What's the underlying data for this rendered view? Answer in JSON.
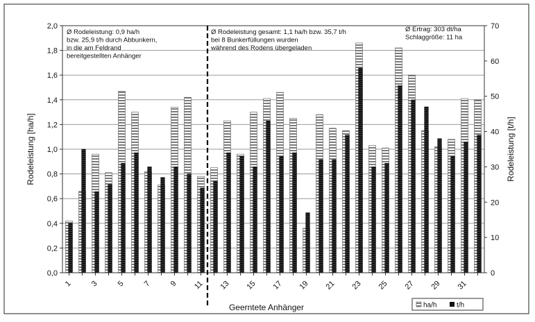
{
  "chart_data": {
    "type": "bar",
    "categories": [
      "1",
      "2",
      "3",
      "4",
      "5",
      "6",
      "7",
      "8",
      "9",
      "10",
      "11",
      "12",
      "13",
      "14",
      "15",
      "16",
      "17",
      "18",
      "19",
      "20",
      "21",
      "22",
      "23",
      "24",
      "25",
      "26",
      "27",
      "28",
      "29",
      "30",
      "31",
      "32"
    ],
    "x_tick_labels": [
      "1",
      "3",
      "5",
      "7",
      "9",
      "11",
      "13",
      "15",
      "17",
      "19",
      "21",
      "23",
      "25",
      "27",
      "29",
      "31"
    ],
    "xlabel": "Geerntete Anhänger",
    "ylabel_left": "Rodeleistung [ha/h]",
    "ylabel_right": "Rodeleistung [t/h]",
    "ylim_left": [
      0,
      2.0
    ],
    "ylim_right": [
      0,
      70
    ],
    "y_ticks_left": [
      "0,0",
      "0,2",
      "0,4",
      "0,6",
      "0,8",
      "1,0",
      "1,2",
      "1,4",
      "1,6",
      "1,8",
      "2,0"
    ],
    "y_ticks_right": [
      "0",
      "10",
      "20",
      "30",
      "40",
      "50",
      "60",
      "70"
    ],
    "grid": true,
    "legend_position": "bottom-right",
    "divider_after_category": 11,
    "series": [
      {
        "name": "ha/h",
        "axis": "left",
        "pattern": "horizontal-hatch",
        "values": [
          0.42,
          0.66,
          0.96,
          0.81,
          1.47,
          1.3,
          0.82,
          0.71,
          1.34,
          1.42,
          0.78,
          0.85,
          1.23,
          0.96,
          1.3,
          1.41,
          1.46,
          1.25,
          0.36,
          1.28,
          1.17,
          1.15,
          1.86,
          1.03,
          1.01,
          1.82,
          1.6,
          1.15,
          1.02,
          1.08,
          1.41,
          1.4
        ]
      },
      {
        "name": "t/h",
        "axis": "right",
        "pattern": "dark",
        "values": [
          14,
          35,
          23,
          25,
          31,
          34,
          30,
          27,
          30,
          28,
          24,
          26,
          34,
          33,
          30,
          43,
          33,
          34,
          17,
          32,
          32,
          39,
          58,
          30,
          31,
          53,
          49,
          47,
          38,
          33,
          37,
          39
        ]
      }
    ],
    "annotations": [
      {
        "id": "left",
        "lines": [
          "Ø Rodeleistung: 0,9 ha/h",
          "bzw. 25,9 t/h durch Abbunkern,",
          "in die am Feldrand",
          "bereitgestellten Anhänger"
        ]
      },
      {
        "id": "middle",
        "lines": [
          "Ø Rodeleistung gesamt: 1,1 ha/h bzw. 35,7 t/h",
          "bei 8 Bunkerfüllungen wurden",
          "während des Rodens übergeladen"
        ]
      },
      {
        "id": "right",
        "lines": [
          "Ø Ertrag: 303 dt/ha",
          "Schlaggröße: 11 ha"
        ]
      }
    ]
  }
}
